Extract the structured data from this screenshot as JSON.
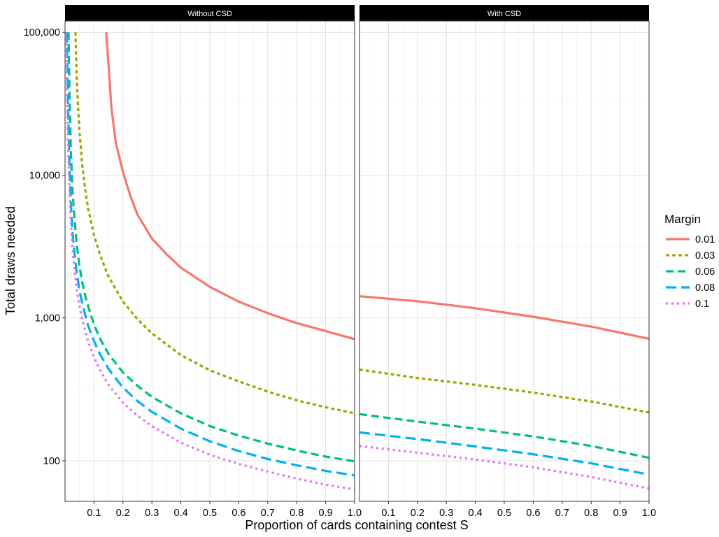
{
  "chart_data": {
    "type": "line",
    "xlabel": "Proportion of cards containing contest S",
    "ylabel": "Total draws needed",
    "y_scale": "log10",
    "ylim": [
      52,
      120000
    ],
    "xlim": [
      0.0,
      1.0
    ],
    "x_ticks": [
      0.1,
      0.2,
      0.3,
      0.4,
      0.5,
      0.6,
      0.7,
      0.8,
      0.9,
      1.0
    ],
    "x_tick_labels": [
      "0.1",
      "0.2",
      "0.3",
      "0.4",
      "0.5",
      "0.6",
      "0.7",
      "0.8",
      "0.9",
      "1.0"
    ],
    "y_ticks": [
      100,
      1000,
      10000,
      100000
    ],
    "y_tick_labels": [
      "100",
      "1,000",
      "10,000",
      "100,000"
    ],
    "grid": true,
    "legend": {
      "title": "Margin",
      "placement": "right"
    },
    "panels": [
      {
        "label": "Without CSD",
        "series": [
          {
            "name": "0.01",
            "color": "#F8766D",
            "dash": "solid",
            "x": [
              0.142,
              0.15,
              0.16,
              0.175,
              0.2,
              0.225,
              0.25,
              0.3,
              0.35,
              0.4,
              0.5,
              0.6,
              0.7,
              0.8,
              0.9,
              1.0
            ],
            "y": [
              100000,
              60000,
              30000,
              17000,
              10500,
              7200,
              5300,
              3600,
              2800,
              2250,
              1650,
              1300,
              1080,
              920,
              810,
              710
            ]
          },
          {
            "name": "0.03",
            "color": "#A3A500",
            "dash": "short",
            "x": [
              0.036,
              0.04,
              0.045,
              0.05,
              0.06,
              0.07,
              0.08,
              0.1,
              0.12,
              0.15,
              0.2,
              0.25,
              0.3,
              0.4,
              0.5,
              0.6,
              0.7,
              0.8,
              0.9,
              1.0
            ],
            "y": [
              100000,
              50000,
              30000,
              20000,
              11500,
              7800,
              5800,
              3800,
              2800,
              1950,
              1300,
              980,
              780,
              550,
              430,
              360,
              305,
              265,
              237,
              215
            ]
          },
          {
            "name": "0.06",
            "color": "#00BF7D",
            "dash": "long",
            "x": [
              0.012,
              0.015,
              0.02,
              0.025,
              0.03,
              0.04,
              0.05,
              0.06,
              0.07,
              0.08,
              0.1,
              0.12,
              0.15,
              0.2,
              0.25,
              0.3,
              0.4,
              0.5,
              0.6,
              0.7,
              0.8,
              0.9,
              1.0
            ],
            "y": [
              100000,
              40000,
              15000,
              8500,
              5800,
              3300,
              2300,
              1750,
              1420,
              1200,
              900,
              720,
              560,
              415,
              335,
              280,
              215,
              175,
              150,
              132,
              118,
              107,
              99
            ]
          },
          {
            "name": "0.08",
            "color": "#00B0F6",
            "dash": "longer",
            "x": [
              0.006,
              0.008,
              0.01,
              0.015,
              0.02,
              0.025,
              0.03,
              0.04,
              0.05,
              0.06,
              0.08,
              0.1,
              0.12,
              0.15,
              0.2,
              0.25,
              0.3,
              0.4,
              0.5,
              0.6,
              0.7,
              0.8,
              0.9,
              1.0
            ],
            "y": [
              100000,
              60000,
              33000,
              12000,
              6500,
              4200,
              3200,
              2100,
              1550,
              1250,
              880,
              690,
              560,
              440,
              325,
              262,
              220,
              168,
              137,
              117,
              103,
              93,
              85,
              79
            ]
          },
          {
            "name": "0.1",
            "color": "#E76BF3",
            "dash": "dotted",
            "x": [
              0.004,
              0.006,
              0.008,
              0.01,
              0.015,
              0.02,
              0.025,
              0.03,
              0.04,
              0.05,
              0.06,
              0.08,
              0.1,
              0.12,
              0.15,
              0.2,
              0.25,
              0.3,
              0.4,
              0.5,
              0.6,
              0.7,
              0.8,
              0.9,
              1.0
            ],
            "y": [
              100000,
              50000,
              28000,
              18000,
              8000,
              4700,
              3300,
              2500,
              1600,
              1200,
              960,
              680,
              530,
              435,
              340,
              255,
              207,
              175,
              134,
              110,
              95,
              84,
              75,
              68,
              63
            ]
          }
        ]
      },
      {
        "label": "With CSD",
        "series": [
          {
            "name": "0.01",
            "color": "#F8766D",
            "dash": "solid",
            "x": [
              0.0,
              0.2,
              0.4,
              0.6,
              0.8,
              1.0
            ],
            "y": [
              1420,
              1310,
              1170,
              1020,
              870,
              715
            ]
          },
          {
            "name": "0.03",
            "color": "#A3A500",
            "dash": "short",
            "x": [
              0.0,
              0.2,
              0.4,
              0.6,
              0.8,
              1.0
            ],
            "y": [
              435,
              380,
              340,
              300,
              260,
              218
            ]
          },
          {
            "name": "0.06",
            "color": "#00BF7D",
            "dash": "long",
            "x": [
              0.0,
              0.2,
              0.4,
              0.6,
              0.8,
              1.0
            ],
            "y": [
              212,
              188,
              168,
              148,
              127,
              105
            ]
          },
          {
            "name": "0.08",
            "color": "#00B0F6",
            "dash": "longer",
            "x": [
              0.0,
              0.2,
              0.4,
              0.6,
              0.8,
              1.0
            ],
            "y": [
              158,
              142,
              126,
              111,
              96,
              80
            ]
          },
          {
            "name": "0.1",
            "color": "#E76BF3",
            "dash": "dotted",
            "x": [
              0.0,
              0.2,
              0.4,
              0.6,
              0.8,
              1.0
            ],
            "y": [
              127,
              114,
              102,
              90,
              77,
              64
            ]
          }
        ]
      }
    ]
  }
}
